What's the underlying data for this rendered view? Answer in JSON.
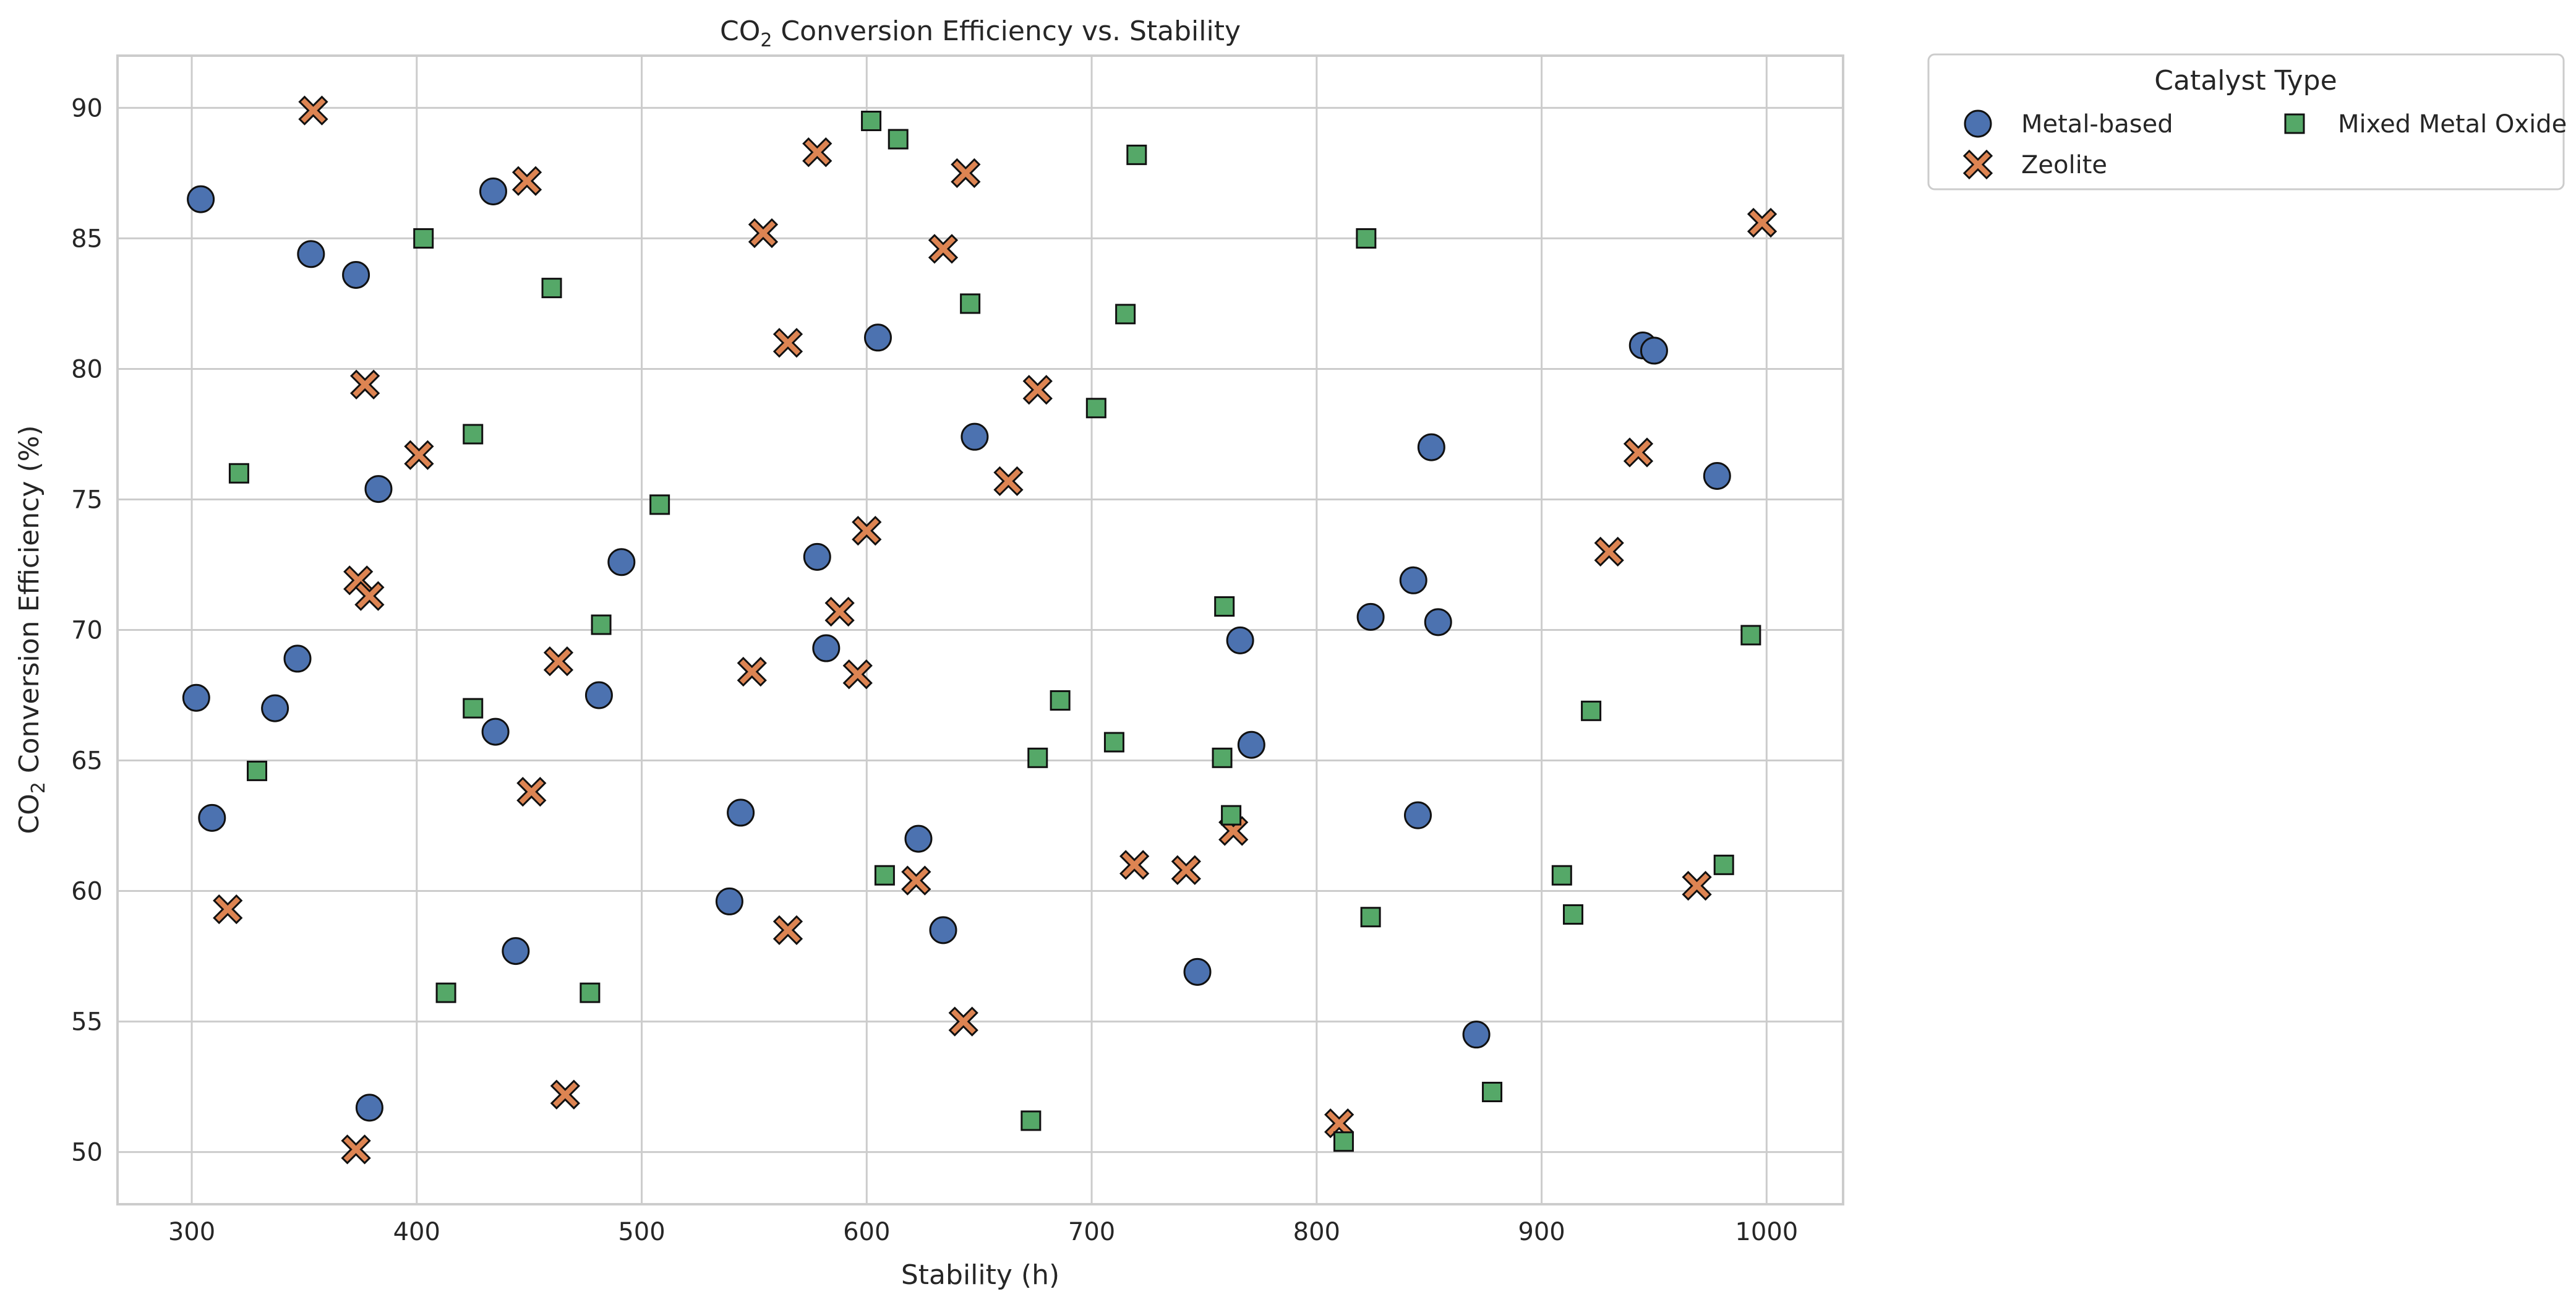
{
  "chart_data": {
    "type": "scatter",
    "title": "CO₂ Conversion Efficiency vs. Stability",
    "xlabel": "Stability (h)",
    "ylabel": "CO₂ Conversion Efficiency (%)",
    "xlim": [
      267,
      1034
    ],
    "ylim": [
      48,
      92
    ],
    "xticks": [
      300,
      400,
      500,
      600,
      700,
      800,
      900,
      1000
    ],
    "yticks": [
      50,
      55,
      60,
      65,
      70,
      75,
      80,
      85,
      90
    ],
    "grid": true,
    "legend": {
      "title": "Catalyst Type",
      "placement": "outside-top-right",
      "columns": 2
    },
    "series": [
      {
        "name": "Metal-based",
        "marker": "circle",
        "color": "#4c72b0",
        "points": [
          [
            304,
            86.5
          ],
          [
            353,
            84.4
          ],
          [
            373,
            83.6
          ],
          [
            434,
            86.8
          ],
          [
            605,
            81.2
          ],
          [
            383,
            75.4
          ],
          [
            648,
            77.4
          ],
          [
            945,
            80.9
          ],
          [
            950,
            80.7
          ],
          [
            851,
            77.0
          ],
          [
            978,
            75.9
          ],
          [
            491,
            72.6
          ],
          [
            578,
            72.8
          ],
          [
            843,
            71.9
          ],
          [
            824,
            70.5
          ],
          [
            854,
            70.3
          ],
          [
            766,
            69.6
          ],
          [
            302,
            67.4
          ],
          [
            347,
            68.9
          ],
          [
            337,
            67.0
          ],
          [
            435,
            66.1
          ],
          [
            481,
            67.5
          ],
          [
            582,
            69.3
          ],
          [
            771,
            65.6
          ],
          [
            309,
            62.8
          ],
          [
            544,
            63.0
          ],
          [
            623,
            62.0
          ],
          [
            845,
            62.9
          ],
          [
            539,
            59.6
          ],
          [
            634,
            58.5
          ],
          [
            444,
            57.7
          ],
          [
            747,
            56.9
          ],
          [
            871,
            54.5
          ],
          [
            379,
            51.7
          ]
        ]
      },
      {
        "name": "Zeolite",
        "marker": "x",
        "color": "#dd8452",
        "points": [
          [
            354,
            89.9
          ],
          [
            449,
            87.2
          ],
          [
            578,
            88.3
          ],
          [
            644,
            87.5
          ],
          [
            554,
            85.2
          ],
          [
            634,
            84.6
          ],
          [
            998,
            85.6
          ],
          [
            565,
            81.0
          ],
          [
            377,
            79.4
          ],
          [
            676,
            79.2
          ],
          [
            401,
            76.7
          ],
          [
            663,
            75.7
          ],
          [
            943,
            76.8
          ],
          [
            600,
            73.8
          ],
          [
            930,
            73.0
          ],
          [
            374,
            71.9
          ],
          [
            379,
            71.3
          ],
          [
            588,
            70.7
          ],
          [
            463,
            68.8
          ],
          [
            549,
            68.4
          ],
          [
            596,
            68.3
          ],
          [
            451,
            63.8
          ],
          [
            763,
            62.3
          ],
          [
            316,
            59.3
          ],
          [
            622,
            60.4
          ],
          [
            719,
            61.0
          ],
          [
            742,
            60.8
          ],
          [
            969,
            60.2
          ],
          [
            565,
            58.5
          ],
          [
            643,
            55.0
          ],
          [
            466,
            52.2
          ],
          [
            810,
            51.1
          ],
          [
            373,
            50.1
          ]
        ]
      },
      {
        "name": "Mixed Metal Oxide",
        "marker": "square",
        "color": "#55a868",
        "points": [
          [
            602,
            89.5
          ],
          [
            614,
            88.8
          ],
          [
            720,
            88.2
          ],
          [
            403,
            85.0
          ],
          [
            822,
            85.0
          ],
          [
            460,
            83.1
          ],
          [
            646,
            82.5
          ],
          [
            715,
            82.1
          ],
          [
            702,
            78.5
          ],
          [
            321,
            76.0
          ],
          [
            425,
            77.5
          ],
          [
            508,
            74.8
          ],
          [
            759,
            70.9
          ],
          [
            482,
            70.2
          ],
          [
            993,
            69.8
          ],
          [
            686,
            67.3
          ],
          [
            425,
            67.0
          ],
          [
            922,
            66.9
          ],
          [
            329,
            64.6
          ],
          [
            676,
            65.1
          ],
          [
            710,
            65.7
          ],
          [
            758,
            65.1
          ],
          [
            762,
            62.9
          ],
          [
            608,
            60.6
          ],
          [
            909,
            60.6
          ],
          [
            981,
            61.0
          ],
          [
            824,
            59.0
          ],
          [
            914,
            59.1
          ],
          [
            413,
            56.1
          ],
          [
            477,
            56.1
          ],
          [
            673,
            51.2
          ],
          [
            878,
            52.3
          ],
          [
            812,
            50.4
          ]
        ]
      }
    ]
  }
}
